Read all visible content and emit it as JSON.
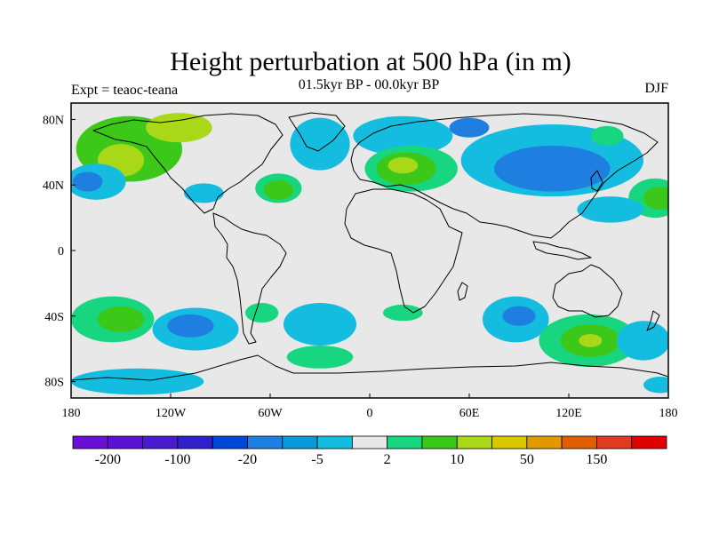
{
  "title": "Height perturbation at 500 hPa (in m)",
  "subtitle": "01.5kyr BP - 00.0kyr BP",
  "experiment": "Expt = teaoc-teana",
  "season": "DJF",
  "map": {
    "projection": "cylindrical-equidistant",
    "lon_range": [
      -180,
      180
    ],
    "lat_range": [
      -90,
      90
    ],
    "lon_ticks": [
      {
        "value": -180,
        "label": "180"
      },
      {
        "value": -120,
        "label": "120W"
      },
      {
        "value": -60,
        "label": "60W"
      },
      {
        "value": 0,
        "label": "0"
      },
      {
        "value": 60,
        "label": "60E"
      },
      {
        "value": 120,
        "label": "120E"
      },
      {
        "value": 180,
        "label": "180"
      }
    ],
    "lat_ticks": [
      {
        "value": 80,
        "label": "80N"
      },
      {
        "value": 40,
        "label": "40N"
      },
      {
        "value": 0,
        "label": "0"
      },
      {
        "value": -40,
        "label": "40S"
      },
      {
        "value": -80,
        "label": "80S"
      }
    ],
    "background_color": "#e8e8e8",
    "coastline_color": "#000000"
  },
  "colorbar": {
    "colors": [
      "#6a0fd6",
      "#5a12d2",
      "#4a1ad0",
      "#3020cc",
      "#0048d8",
      "#1f7fe0",
      "#0a98d8",
      "#14bde0",
      "#e8e8e8",
      "#18d680",
      "#3cc818",
      "#a8d818",
      "#d8c800",
      "#e09a00",
      "#e06000",
      "#e03a20",
      "#e00000"
    ],
    "labels": [
      {
        "after_box": 1,
        "text": "-200"
      },
      {
        "after_box": 3,
        "text": "-100"
      },
      {
        "after_box": 5,
        "text": "-20"
      },
      {
        "after_box": 7,
        "text": "-5"
      },
      {
        "after_box": 9,
        "text": "2"
      },
      {
        "after_box": 11,
        "text": "10"
      },
      {
        "after_box": 13,
        "text": "50"
      },
      {
        "after_box": 15,
        "text": "150"
      }
    ]
  },
  "regions": [
    {
      "lon": -145,
      "lat": 62,
      "rx": 32,
      "ry": 20,
      "color": "#3cc818"
    },
    {
      "lon": -150,
      "lat": 55,
      "rx": 14,
      "ry": 10,
      "color": "#a8d818"
    },
    {
      "lon": -115,
      "lat": 75,
      "rx": 20,
      "ry": 9,
      "color": "#a8d818"
    },
    {
      "lon": -165,
      "lat": 42,
      "rx": 18,
      "ry": 11,
      "color": "#14bde0"
    },
    {
      "lon": -170,
      "lat": 42,
      "rx": 9,
      "ry": 6,
      "color": "#1f7fe0"
    },
    {
      "lon": -100,
      "lat": 35,
      "rx": 12,
      "ry": 6,
      "color": "#14bde0"
    },
    {
      "lon": -55,
      "lat": 38,
      "rx": 14,
      "ry": 9,
      "color": "#18d680"
    },
    {
      "lon": -55,
      "lat": 37,
      "rx": 9,
      "ry": 6,
      "color": "#3cc818"
    },
    {
      "lon": -30,
      "lat": 65,
      "rx": 18,
      "ry": 16,
      "color": "#14bde0"
    },
    {
      "lon": 20,
      "lat": 70,
      "rx": 30,
      "ry": 12,
      "color": "#14bde0"
    },
    {
      "lon": 25,
      "lat": 50,
      "rx": 28,
      "ry": 14,
      "color": "#18d680"
    },
    {
      "lon": 22,
      "lat": 50,
      "rx": 18,
      "ry": 10,
      "color": "#3cc818"
    },
    {
      "lon": 20,
      "lat": 52,
      "rx": 9,
      "ry": 5,
      "color": "#a8d818"
    },
    {
      "lon": 110,
      "lat": 55,
      "rx": 55,
      "ry": 22,
      "color": "#14bde0"
    },
    {
      "lon": 110,
      "lat": 50,
      "rx": 35,
      "ry": 14,
      "color": "#1f7fe0"
    },
    {
      "lon": 60,
      "lat": 75,
      "rx": 12,
      "ry": 6,
      "color": "#1f7fe0"
    },
    {
      "lon": 172,
      "lat": 32,
      "rx": 16,
      "ry": 12,
      "color": "#18d680"
    },
    {
      "lon": 175,
      "lat": 32,
      "rx": 10,
      "ry": 7,
      "color": "#3cc818"
    },
    {
      "lon": 143,
      "lat": 70,
      "rx": 10,
      "ry": 6,
      "color": "#18d680"
    },
    {
      "lon": 145,
      "lat": 25,
      "rx": 20,
      "ry": 8,
      "color": "#14bde0"
    },
    {
      "lon": -155,
      "lat": -42,
      "rx": 25,
      "ry": 14,
      "color": "#18d680"
    },
    {
      "lon": -150,
      "lat": -42,
      "rx": 14,
      "ry": 8,
      "color": "#3cc818"
    },
    {
      "lon": -105,
      "lat": -48,
      "rx": 26,
      "ry": 13,
      "color": "#14bde0"
    },
    {
      "lon": -108,
      "lat": -46,
      "rx": 14,
      "ry": 7,
      "color": "#1f7fe0"
    },
    {
      "lon": -30,
      "lat": -45,
      "rx": 22,
      "ry": 13,
      "color": "#14bde0"
    },
    {
      "lon": -65,
      "lat": -38,
      "rx": 10,
      "ry": 6,
      "color": "#18d680"
    },
    {
      "lon": -30,
      "lat": -65,
      "rx": 20,
      "ry": 7,
      "color": "#18d680"
    },
    {
      "lon": 20,
      "lat": -38,
      "rx": 12,
      "ry": 5,
      "color": "#18d680"
    },
    {
      "lon": 88,
      "lat": -42,
      "rx": 20,
      "ry": 14,
      "color": "#14bde0"
    },
    {
      "lon": 90,
      "lat": -40,
      "rx": 10,
      "ry": 6,
      "color": "#1f7fe0"
    },
    {
      "lon": 132,
      "lat": -55,
      "rx": 30,
      "ry": 16,
      "color": "#18d680"
    },
    {
      "lon": 133,
      "lat": -55,
      "rx": 18,
      "ry": 10,
      "color": "#3cc818"
    },
    {
      "lon": 133,
      "lat": -55,
      "rx": 7,
      "ry": 4,
      "color": "#a8d818"
    },
    {
      "lon": 165,
      "lat": -55,
      "rx": 16,
      "ry": 12,
      "color": "#14bde0"
    },
    {
      "lon": -140,
      "lat": -80,
      "rx": 40,
      "ry": 8,
      "color": "#14bde0"
    },
    {
      "lon": 175,
      "lat": -82,
      "rx": 10,
      "ry": 5,
      "color": "#14bde0"
    }
  ]
}
